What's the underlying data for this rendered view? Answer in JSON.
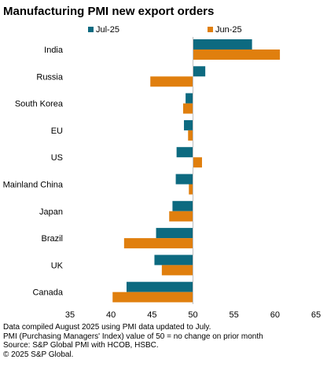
{
  "chart_data": {
    "type": "bar",
    "orientation": "horizontal",
    "title": "Manufacturing PMI new export orders",
    "categories": [
      "India",
      "Russia",
      "South Korea",
      "EU",
      "US",
      "Mainland China",
      "Japan",
      "Brazil",
      "UK",
      "Canada"
    ],
    "series": [
      {
        "name": "Jul-25",
        "color": "#0d6a80",
        "values": [
          57.2,
          51.5,
          49.1,
          48.9,
          48.0,
          47.9,
          47.5,
          45.5,
          45.3,
          41.9
        ]
      },
      {
        "name": "Jun-25",
        "color": "#e07f0e",
        "values": [
          60.6,
          44.8,
          48.8,
          49.4,
          51.1,
          49.5,
          47.1,
          41.6,
          46.2,
          40.2
        ]
      }
    ],
    "xlim": [
      35,
      65
    ],
    "xticks": [
      35,
      40,
      45,
      50,
      55,
      60,
      65
    ],
    "baseline": 50,
    "legend_position": "top",
    "grid": false,
    "xlabel": "",
    "ylabel": ""
  },
  "footnotes": [
    "Data compiled August 2025 using PMI data updated to July.",
    "PMI (Purchasing Managers' Index) value of 50 = no change on prior month",
    "Source: S&P Global PMI with HCOB, HSBC.",
    "© 2025 S&P Global."
  ]
}
